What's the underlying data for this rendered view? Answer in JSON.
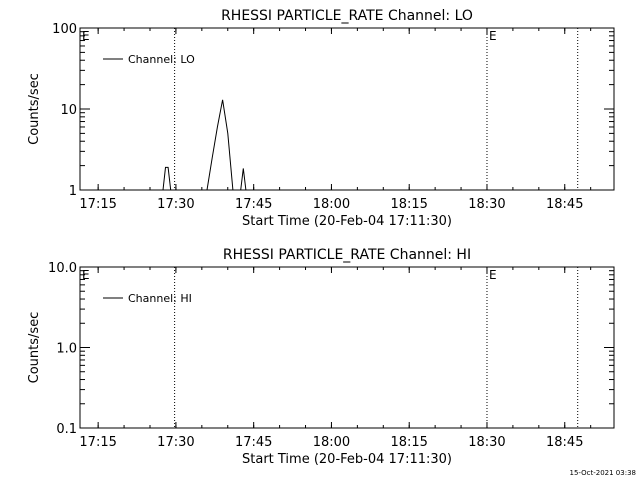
{
  "footer": {
    "timestamp": "15-Oct-2021 03:38"
  },
  "chart_data": [
    {
      "type": "line",
      "title": "RHESSI PARTICLE_RATE Channel: LO",
      "xlabel": "Start Time (20-Feb-04 17:11:30)",
      "ylabel": "Counts/sec",
      "y_scale": "log",
      "xlim": [
        "17:11:30",
        "18:54:30"
      ],
      "ylim": [
        1,
        100
      ],
      "x_ticks": [
        "17:15",
        "17:30",
        "17:45",
        "18:00",
        "18:15",
        "18:30",
        "18:45"
      ],
      "y_ticks": [
        "1",
        "10",
        "100"
      ],
      "legend": {
        "position": "top-left",
        "label": "Channel: LO"
      },
      "event_markers": [
        {
          "time": "17:29:45",
          "label": "E",
          "label_position": "top-left"
        },
        {
          "time": "18:30:00",
          "label": "E",
          "label_position": "top-right"
        },
        {
          "time": "18:47:30",
          "label": "",
          "label_position": ""
        }
      ],
      "series": [
        {
          "name": "Channel: LO",
          "x": [
            "17:11:30",
            "17:27:30",
            "17:28:00",
            "17:28:30",
            "17:29:00",
            "17:29:30",
            "17:36:00",
            "17:37:00",
            "17:38:00",
            "17:39:00",
            "17:40:00",
            "17:41:00",
            "17:42:00",
            "17:42:30",
            "17:43:00",
            "17:43:30",
            "17:44:00",
            "17:44:30",
            "17:54:30"
          ],
          "y": [
            1,
            1,
            1.9,
            1.9,
            1,
            1,
            1,
            2.5,
            6,
            13,
            5,
            1,
            1,
            1,
            1.85,
            1,
            1,
            1,
            1
          ]
        }
      ]
    },
    {
      "type": "line",
      "title": "RHESSI PARTICLE_RATE Channel: HI",
      "xlabel": "Start Time (20-Feb-04 17:11:30)",
      "ylabel": "Counts/sec",
      "y_scale": "log",
      "xlim": [
        "17:11:30",
        "18:54:30"
      ],
      "ylim": [
        0.1,
        10
      ],
      "x_ticks": [
        "17:15",
        "17:30",
        "17:45",
        "18:00",
        "18:15",
        "18:30",
        "18:45"
      ],
      "y_ticks": [
        "0.1",
        "1.0",
        "10.0"
      ],
      "legend": {
        "position": "top-left",
        "label": "Channel: HI"
      },
      "event_markers": [
        {
          "time": "17:29:45",
          "label": "E",
          "label_position": "top-left"
        },
        {
          "time": "18:30:00",
          "label": "E",
          "label_position": "top-right"
        },
        {
          "time": "18:47:30",
          "label": "",
          "label_position": ""
        }
      ],
      "series": [
        {
          "name": "Channel: HI",
          "x": [],
          "y": []
        }
      ]
    }
  ]
}
